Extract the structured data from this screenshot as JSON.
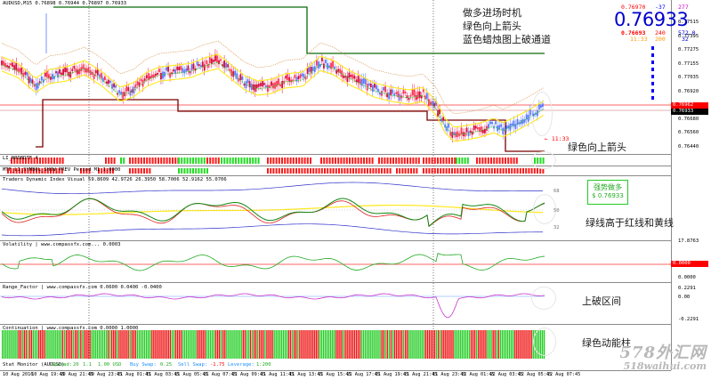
{
  "header": {
    "symbol_line": "AUDUSD,M15 0.76898 0.76944 0.76897 0.76933"
  },
  "quote_panel": {
    "top_row": [
      "0.76970",
      "-37",
      "277"
    ],
    "big_price": "0.76933",
    "row2": [
      "0.76693",
      "240",
      "572.0"
    ],
    "row3": [
      "11:33",
      "200",
      "32"
    ],
    "colors": {
      "big": "#0000cc",
      "red": "#ff0000",
      "orange": "#ff9900",
      "blue": "#0000ff",
      "magenta": "#cc00cc"
    }
  },
  "price_axis": {
    "ticks": [
      "0.77515",
      "0.77395",
      "0.77275",
      "0.77155",
      "0.77035",
      "0.76920",
      "0.76800",
      "0.76680",
      "0.76560",
      "0.76440"
    ],
    "tags": [
      {
        "text": "0.76962",
        "color": "#ff0000"
      },
      {
        "text": "0.76933",
        "color": "#000000"
      }
    ]
  },
  "main_chart": {
    "timer": "← 11:33",
    "annotation_lines": [
      "做多进场时机",
      "绿色向上箭头",
      "蓝色蜡烛图上破通道"
    ]
  },
  "panel_arrows": {
    "label": "LI_NRDBDTF 4",
    "annotation": "绿色向上箭头"
  },
  "panel_mtf": {
    "label": "MTF_LI_SYMBOL_SHOW_PREV Period_M1 1.0000"
  },
  "panel_tdi": {
    "label": "Traders Dynamic Index Visual 59.8609 42.9726 26.3950 58.7006 52.9162 55.0706",
    "badge_lines": [
      "强势做多",
      "$ 0.76933"
    ],
    "annotation": "绿线高于红线和黄线",
    "levels": [
      "68",
      "50",
      "32"
    ]
  },
  "panel_vol": {
    "label": "Volatility | www.compassfx.com... 0.0003",
    "axis_top": "17.8763",
    "axis_mid": "0.0000",
    "axis_bot": "0.0000"
  },
  "panel_range": {
    "label": "Range_Factor | www.compassfx.com 0.0600 0.0400 -0.0400",
    "annotation": "上破区间",
    "axis_top": "0.2291",
    "axis_mid": "0.00",
    "axis_bot": "-0.2291"
  },
  "panel_cont": {
    "label": "Continuation | www.compassfx.com 0.0000 1.0000",
    "annotation": "绿色动能柱"
  },
  "stat_bar": {
    "title": "Stat Monitor (AUDUSD)",
    "spread_label": "Spread:",
    "spread_value": "20",
    "value2": "1.1",
    "lots": "1.00 USD",
    "buy_swap_label": "Buy Swap:",
    "buy_swap_value": "0.25",
    "sell_swap_label": "Sell Swap:",
    "sell_swap_value": "-1.75",
    "leverage_label": "Leverage:",
    "leverage_value": "1:200"
  },
  "time_axis": [
    "10 Aug 2016",
    "10 Aug 19:45",
    "10 Aug 21:45",
    "10 Aug 23:45",
    "11 Aug 01:45",
    "11 Aug 03:45",
    "11 Aug 05:45",
    "11 Aug 07:45",
    "11 Aug 09:45",
    "11 Aug 11:45",
    "11 Aug 13:45",
    "11 Aug 15:45",
    "11 Aug 17:45",
    "11 Aug 19:45",
    "11 Aug 21:45",
    "11 Aug 23:45",
    "12 Aug 01:45",
    "12 Aug 03:45",
    "12 Aug 05:45",
    "12 Aug 07:45"
  ],
  "watermark": {
    "line1": "578外汇网",
    "line2": "518waihui.com"
  }
}
